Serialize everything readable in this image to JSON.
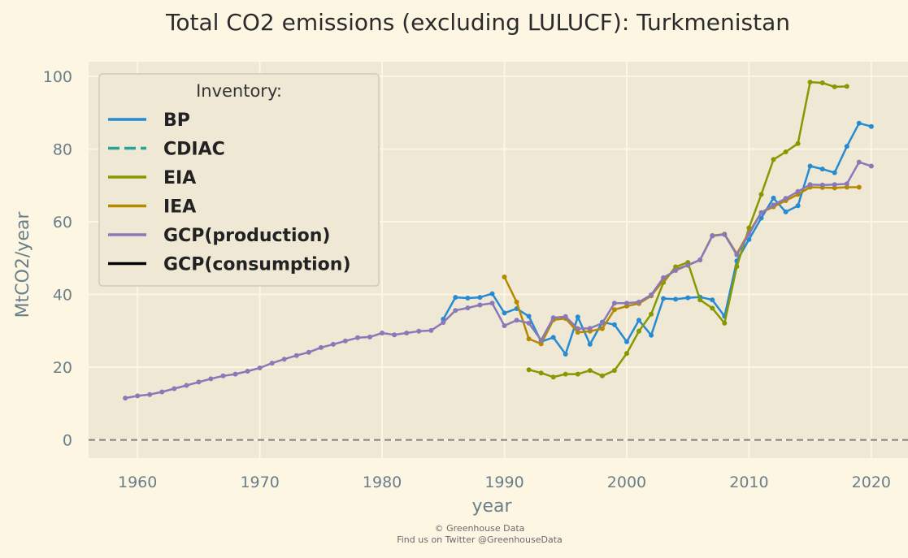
{
  "chart_data": {
    "type": "line",
    "title": "Total CO2 emissions (excluding LULUCF): Turkmenistan",
    "xlabel": "year",
    "ylabel": "MtCO2/year",
    "xlim": [
      1956,
      2023
    ],
    "ylim": [
      -5,
      104
    ],
    "xticks": [
      1960,
      1970,
      1980,
      1990,
      2000,
      2010,
      2020
    ],
    "yticks": [
      0,
      20,
      40,
      60,
      80,
      100
    ],
    "grid": true,
    "reference_line": {
      "y": 0,
      "style": "dashed",
      "color": "#808080"
    },
    "legend": {
      "title": "Inventory:",
      "placement": "top-left"
    },
    "series": [
      {
        "name": "BP",
        "color": "#268bd2",
        "dash": "solid",
        "points": [
          [
            1985,
            33.2
          ],
          [
            1986,
            39.2
          ],
          [
            1987,
            39.0
          ],
          [
            1988,
            39.2
          ],
          [
            1989,
            40.2
          ],
          [
            1990,
            34.9
          ],
          [
            1991,
            36.1
          ],
          [
            1992,
            34.0
          ],
          [
            1993,
            27.0
          ],
          [
            1994,
            28.2
          ],
          [
            1995,
            23.6
          ],
          [
            1996,
            33.8
          ],
          [
            1997,
            26.3
          ],
          [
            1998,
            32.4
          ],
          [
            1999,
            31.7
          ],
          [
            2000,
            27.0
          ],
          [
            2001,
            32.9
          ],
          [
            2002,
            28.8
          ],
          [
            2003,
            38.9
          ],
          [
            2004,
            38.7
          ],
          [
            2005,
            39.1
          ],
          [
            2006,
            39.3
          ],
          [
            2007,
            38.5
          ],
          [
            2008,
            34.0
          ],
          [
            2009,
            49.2
          ],
          [
            2010,
            55.1
          ],
          [
            2011,
            61.0
          ],
          [
            2012,
            66.5
          ],
          [
            2013,
            62.7
          ],
          [
            2014,
            64.4
          ],
          [
            2015,
            75.3
          ],
          [
            2016,
            74.5
          ],
          [
            2017,
            73.5
          ],
          [
            2018,
            80.7
          ],
          [
            2019,
            87.1
          ],
          [
            2020,
            86.2
          ]
        ]
      },
      {
        "name": "CDIAC",
        "color": "#2aa198",
        "dash": "dashed",
        "points": []
      },
      {
        "name": "EIA",
        "color": "#859900",
        "dash": "solid",
        "points": [
          [
            1992,
            19.3
          ],
          [
            1993,
            18.4
          ],
          [
            1994,
            17.3
          ],
          [
            1995,
            18.1
          ],
          [
            1996,
            18.1
          ],
          [
            1997,
            19.1
          ],
          [
            1998,
            17.6
          ],
          [
            1999,
            19.1
          ],
          [
            2000,
            23.8
          ],
          [
            2001,
            29.9
          ],
          [
            2002,
            34.6
          ],
          [
            2003,
            43.3
          ],
          [
            2004,
            47.6
          ],
          [
            2005,
            48.8
          ],
          [
            2006,
            38.5
          ],
          [
            2007,
            36.2
          ],
          [
            2008,
            32.1
          ],
          [
            2009,
            47.7
          ],
          [
            2010,
            58.3
          ],
          [
            2011,
            67.5
          ],
          [
            2012,
            77.1
          ],
          [
            2013,
            79.2
          ],
          [
            2014,
            81.5
          ],
          [
            2015,
            98.4
          ],
          [
            2016,
            98.2
          ],
          [
            2017,
            97.1
          ],
          [
            2018,
            97.2
          ]
        ]
      },
      {
        "name": "IEA",
        "color": "#b58900",
        "dash": "solid",
        "points": [
          [
            1990,
            44.8
          ],
          [
            1991,
            37.9
          ],
          [
            1992,
            27.8
          ],
          [
            1993,
            26.4
          ],
          [
            1994,
            33.0
          ],
          [
            1995,
            33.4
          ],
          [
            1996,
            29.6
          ],
          [
            1997,
            29.9
          ],
          [
            1998,
            30.6
          ],
          [
            1999,
            35.8
          ],
          [
            2000,
            36.8
          ],
          [
            2001,
            37.5
          ],
          [
            2002,
            39.6
          ],
          [
            2003,
            43.9
          ],
          [
            2004,
            47.0
          ],
          [
            2005,
            48.0
          ],
          [
            2006,
            49.5
          ],
          [
            2007,
            56.2
          ],
          [
            2008,
            56.6
          ],
          [
            2009,
            51.2
          ],
          [
            2010,
            57.1
          ],
          [
            2011,
            62.5
          ],
          [
            2012,
            64.1
          ],
          [
            2013,
            65.8
          ],
          [
            2014,
            67.5
          ],
          [
            2015,
            69.5
          ],
          [
            2016,
            69.4
          ],
          [
            2017,
            69.3
          ],
          [
            2018,
            69.5
          ],
          [
            2019,
            69.5
          ]
        ]
      },
      {
        "name": "GCP(production)",
        "color": "#8a79b8",
        "dash": "solid",
        "points": [
          [
            1959,
            11.5
          ],
          [
            1960,
            12.1
          ],
          [
            1961,
            12.5
          ],
          [
            1962,
            13.2
          ],
          [
            1963,
            14.1
          ],
          [
            1964,
            15.0
          ],
          [
            1965,
            15.9
          ],
          [
            1966,
            16.8
          ],
          [
            1967,
            17.6
          ],
          [
            1968,
            18.1
          ],
          [
            1969,
            18.9
          ],
          [
            1970,
            19.8
          ],
          [
            1971,
            21.1
          ],
          [
            1972,
            22.2
          ],
          [
            1973,
            23.2
          ],
          [
            1974,
            24.1
          ],
          [
            1975,
            25.4
          ],
          [
            1976,
            26.3
          ],
          [
            1977,
            27.2
          ],
          [
            1978,
            28.1
          ],
          [
            1979,
            28.3
          ],
          [
            1980,
            29.4
          ],
          [
            1981,
            28.9
          ],
          [
            1982,
            29.4
          ],
          [
            1983,
            29.9
          ],
          [
            1984,
            30.1
          ],
          [
            1985,
            32.3
          ],
          [
            1986,
            35.6
          ],
          [
            1987,
            36.3
          ],
          [
            1988,
            37.1
          ],
          [
            1989,
            37.6
          ],
          [
            1990,
            31.4
          ],
          [
            1991,
            32.9
          ],
          [
            1992,
            32.1
          ],
          [
            1993,
            27.4
          ],
          [
            1994,
            33.6
          ],
          [
            1995,
            33.9
          ],
          [
            1996,
            30.6
          ],
          [
            1997,
            30.7
          ],
          [
            1998,
            32.1
          ],
          [
            1999,
            37.6
          ],
          [
            2000,
            37.6
          ],
          [
            2001,
            37.9
          ],
          [
            2002,
            39.9
          ],
          [
            2003,
            44.6
          ],
          [
            2004,
            46.6
          ],
          [
            2005,
            48.1
          ],
          [
            2006,
            49.5
          ],
          [
            2007,
            56.1
          ],
          [
            2008,
            56.5
          ],
          [
            2009,
            50.9
          ],
          [
            2010,
            56.6
          ],
          [
            2011,
            62.5
          ],
          [
            2012,
            64.6
          ],
          [
            2013,
            66.4
          ],
          [
            2014,
            68.3
          ],
          [
            2015,
            70.2
          ],
          [
            2016,
            70.1
          ],
          [
            2017,
            70.2
          ],
          [
            2018,
            70.4
          ],
          [
            2019,
            76.4
          ],
          [
            2020,
            75.3
          ]
        ]
      },
      {
        "name": "GCP(consumption)",
        "color": "#000000",
        "dash": "solid",
        "points": []
      }
    ]
  },
  "credits": {
    "line1": "© Greenhouse Data",
    "line2": "Find us on Twitter @GreenhouseData"
  }
}
